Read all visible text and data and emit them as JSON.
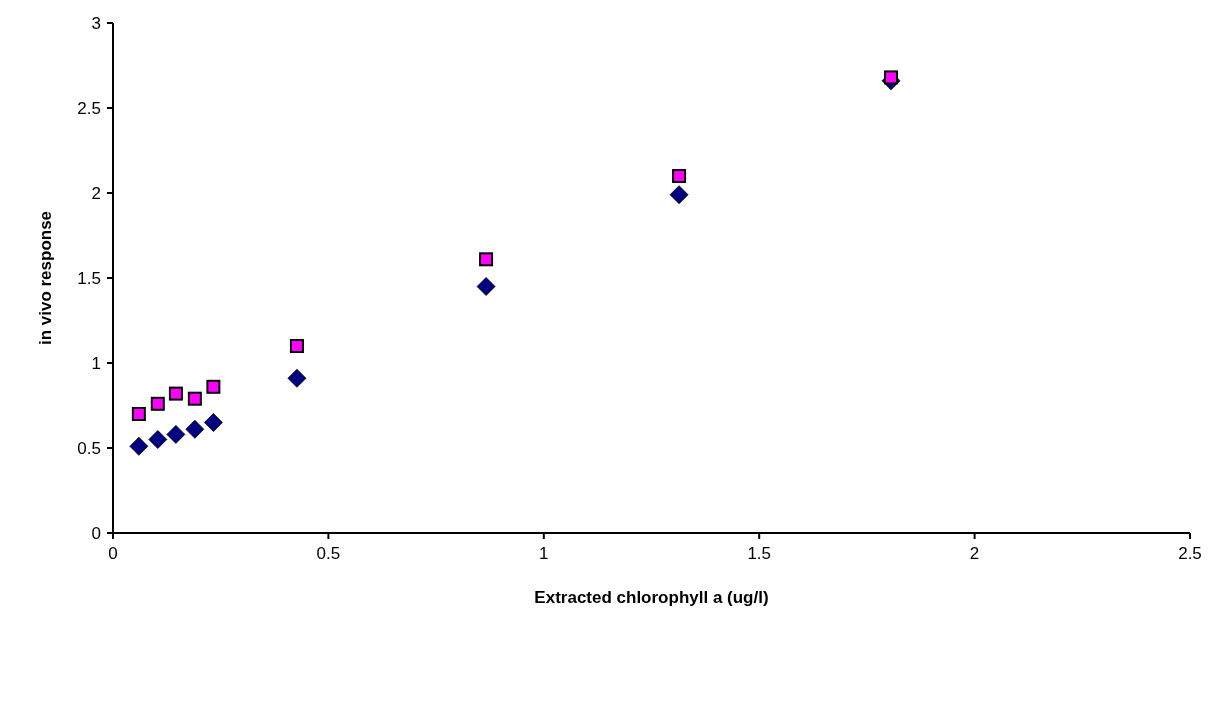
{
  "chart_data": {
    "type": "scatter",
    "xlabel": "Extracted chlorophyll a (ug/l)",
    "ylabel": "in vivo response",
    "xlim": [
      0,
      2.5
    ],
    "xticks": [
      0,
      0.5,
      1,
      1.5,
      2,
      2.5
    ],
    "ylim": [
      0,
      3
    ],
    "yticks": [
      0,
      0.5,
      1,
      1.5,
      2,
      2.5,
      3
    ],
    "series": [
      {
        "color": "#000080",
        "marker": "diamond",
        "x": [
          0.06,
          0.104,
          0.146,
          0.19,
          0.233,
          0.427,
          0.866,
          1.314,
          1.806
        ],
        "values": [
          0.51,
          0.55,
          0.58,
          0.61,
          0.65,
          0.91,
          1.45,
          1.99,
          2.66
        ]
      },
      {
        "color": "#ff00ff",
        "marker": "square",
        "x": [
          0.06,
          0.104,
          0.146,
          0.19,
          0.233,
          0.427,
          0.866,
          1.314,
          1.806
        ],
        "values": [
          0.7,
          0.76,
          0.82,
          0.79,
          0.86,
          1.1,
          1.61,
          2.1,
          2.68
        ]
      }
    ]
  }
}
